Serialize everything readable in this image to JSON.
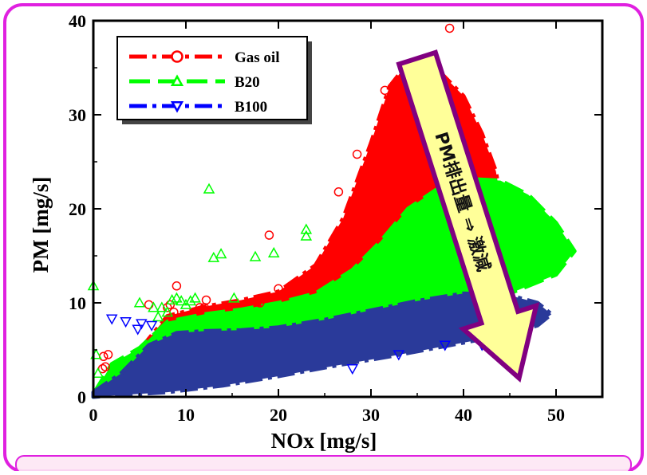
{
  "colors": {
    "frame": "#e020e0",
    "frame_fill": "#fde7f4",
    "gas_oil": "#ff0000",
    "b20": "#00ff00",
    "b100": "#2a3a9a",
    "b100_line": "#0000ff",
    "arrow_fill": "#ffff99",
    "arrow_border": "#800080"
  },
  "chart_data": {
    "type": "scatter",
    "xlabel": "NOx  [mg/s]",
    "ylabel": "PM  [mg/s]",
    "xlim": [
      0,
      55
    ],
    "ylim": [
      0,
      40
    ],
    "x_ticks": [
      0,
      10,
      20,
      30,
      40,
      50
    ],
    "y_ticks": [
      0,
      10,
      20,
      30,
      40
    ],
    "grid": false,
    "legend_position": "top-left",
    "annotation": "PM排出量 ⇒ 激減",
    "series": [
      {
        "name": "Gas oil",
        "marker": "circle",
        "line_style": "dash-dot",
        "color": "#ff0000",
        "points": [
          [
            1,
            3
          ],
          [
            1.1,
            4.3
          ],
          [
            1.3,
            3.2
          ],
          [
            1.6,
            4.5
          ],
          [
            6,
            9.8
          ],
          [
            8,
            9.5
          ],
          [
            8.3,
            9.8
          ],
          [
            8.7,
            9
          ],
          [
            9,
            11.8
          ],
          [
            11.5,
            9.5
          ],
          [
            12,
            9.5
          ],
          [
            12.2,
            10.3
          ],
          [
            18,
            10
          ],
          [
            19,
            17.2
          ],
          [
            20,
            11.5
          ],
          [
            26.5,
            21.8
          ],
          [
            28.5,
            25.8
          ],
          [
            31.5,
            32.6
          ],
          [
            38.5,
            39.2
          ]
        ],
        "envelope": [
          [
            0,
            0.3
          ],
          [
            2,
            2
          ],
          [
            5,
            5
          ],
          [
            8,
            8.6
          ],
          [
            12,
            9.6
          ],
          [
            16,
            10.3
          ],
          [
            20,
            11.2
          ],
          [
            24,
            14
          ],
          [
            27,
            19
          ],
          [
            30,
            27
          ],
          [
            32,
            33
          ],
          [
            34,
            35.5
          ],
          [
            37,
            35
          ],
          [
            40,
            32
          ],
          [
            42,
            28
          ],
          [
            43.5,
            24
          ],
          [
            44,
            21
          ],
          [
            42,
            17
          ],
          [
            39,
            14
          ],
          [
            35,
            10.5
          ],
          [
            30,
            8
          ],
          [
            24,
            6.4
          ],
          [
            18,
            5.5
          ],
          [
            12,
            4
          ],
          [
            7,
            2.2
          ],
          [
            3,
            0.8
          ],
          [
            0,
            0
          ]
        ]
      },
      {
        "name": "B20",
        "marker": "triangle-up",
        "line_style": "long-dash",
        "color": "#00ff00",
        "points": [
          [
            0,
            11.8
          ],
          [
            0.5,
            2.5
          ],
          [
            0.3,
            4.5
          ],
          [
            5,
            10
          ],
          [
            6.5,
            9.5
          ],
          [
            7,
            8.5
          ],
          [
            7.4,
            9.5
          ],
          [
            8,
            9
          ],
          [
            8.5,
            10.3
          ],
          [
            9,
            10.5
          ],
          [
            9.5,
            10.2
          ],
          [
            10,
            9.8
          ],
          [
            10.5,
            10.2
          ],
          [
            11,
            10.5
          ],
          [
            12.5,
            22.1
          ],
          [
            13,
            14.8
          ],
          [
            13.8,
            15.2
          ],
          [
            15.2,
            10.5
          ],
          [
            17.5,
            14.9
          ],
          [
            19.5,
            15.3
          ],
          [
            23,
            17.8
          ],
          [
            23,
            17.1
          ]
        ],
        "envelope": [
          [
            0,
            0.3
          ],
          [
            2,
            3.5
          ],
          [
            5,
            5.2
          ],
          [
            8,
            8
          ],
          [
            12,
            8.8
          ],
          [
            16,
            9.3
          ],
          [
            20,
            10
          ],
          [
            24,
            11
          ],
          [
            28,
            13.5
          ],
          [
            31,
            16.5
          ],
          [
            34,
            20
          ],
          [
            37,
            22
          ],
          [
            40,
            23.2
          ],
          [
            44,
            23
          ],
          [
            47,
            21.5
          ],
          [
            50,
            18.5
          ],
          [
            52,
            15.5
          ],
          [
            50,
            13
          ],
          [
            45,
            11
          ],
          [
            40,
            9.5
          ],
          [
            34,
            8
          ],
          [
            28,
            6.8
          ],
          [
            22,
            6
          ],
          [
            16,
            5
          ],
          [
            10,
            3.5
          ],
          [
            5,
            1.8
          ],
          [
            2,
            0.6
          ],
          [
            0,
            0
          ]
        ]
      },
      {
        "name": "B100",
        "marker": "triangle-down",
        "line_style": "dash-dot",
        "color": "#0000ff",
        "points": [
          [
            2,
            8.3
          ],
          [
            3.5,
            8
          ],
          [
            4.8,
            7.2
          ],
          [
            5.2,
            7.8
          ],
          [
            6.3,
            7.6
          ],
          [
            28,
            3
          ],
          [
            33,
            4.5
          ],
          [
            38,
            5.5
          ],
          [
            42,
            5.5
          ]
        ],
        "envelope": [
          [
            0,
            0.5
          ],
          [
            3,
            2.5
          ],
          [
            6,
            5.5
          ],
          [
            9,
            6.8
          ],
          [
            12,
            7
          ],
          [
            16,
            7.1
          ],
          [
            20,
            7.4
          ],
          [
            25,
            8.2
          ],
          [
            30,
            9.2
          ],
          [
            35,
            10.2
          ],
          [
            40,
            11
          ],
          [
            45,
            10.8
          ],
          [
            48,
            10
          ],
          [
            49.5,
            8.8
          ],
          [
            48,
            7.6
          ],
          [
            44,
            6.5
          ],
          [
            38,
            5.4
          ],
          [
            32,
            4.3
          ],
          [
            26,
            3.3
          ],
          [
            20,
            2.2
          ],
          [
            14,
            1.2
          ],
          [
            8,
            0.5
          ],
          [
            3,
            0.2
          ],
          [
            0,
            0
          ]
        ]
      }
    ],
    "overlay_arrow": {
      "from": [
        35,
        36
      ],
      "to": [
        46,
        2
      ]
    }
  }
}
